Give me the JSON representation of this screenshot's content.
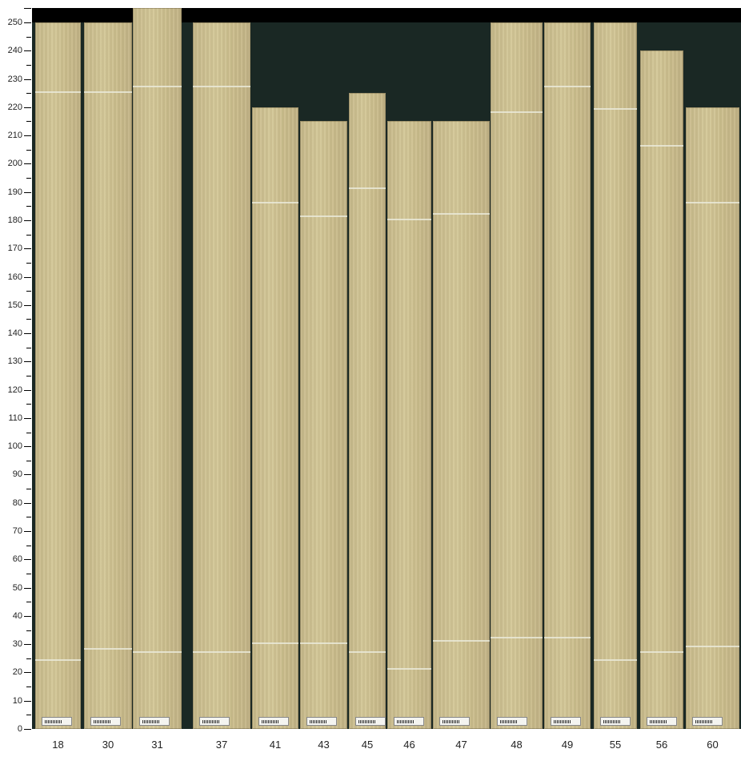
{
  "y_axis": {
    "min": 0,
    "max": 250,
    "major_step": 10,
    "minor_step": 5,
    "labels": [
      "0",
      "10",
      "20",
      "30",
      "40",
      "50",
      "60",
      "70",
      "80",
      "90",
      "100",
      "110",
      "120",
      "130",
      "140",
      "150",
      "160",
      "170",
      "180",
      "190",
      "200",
      "210",
      "220",
      "230",
      "240",
      "250"
    ]
  },
  "boards": [
    {
      "id": "18",
      "length": 250,
      "marks": [
        225,
        24
      ]
    },
    {
      "id": "30",
      "length": 250,
      "marks": [
        225,
        28
      ]
    },
    {
      "id": "31",
      "length": 255,
      "marks": [
        227,
        27
      ]
    },
    {
      "id": "37",
      "length": 250,
      "marks": [
        227,
        27
      ]
    },
    {
      "id": "41",
      "length": 220,
      "marks": [
        186,
        30
      ]
    },
    {
      "id": "43",
      "length": 215,
      "marks": [
        181,
        30
      ]
    },
    {
      "id": "45",
      "length": 225,
      "marks": [
        191,
        27
      ]
    },
    {
      "id": "46",
      "length": 215,
      "marks": [
        180,
        21
      ]
    },
    {
      "id": "47",
      "length": 215,
      "marks": [
        182,
        31
      ]
    },
    {
      "id": "48",
      "length": 250,
      "marks": [
        218,
        32
      ]
    },
    {
      "id": "49",
      "length": 250,
      "marks": [
        227,
        32
      ]
    },
    {
      "id": "55",
      "length": 250,
      "marks": [
        219,
        24
      ]
    },
    {
      "id": "56",
      "length": 240,
      "marks": [
        206,
        27
      ]
    },
    {
      "id": "60",
      "length": 220,
      "marks": [
        186,
        29
      ]
    }
  ],
  "colors": {
    "background_top": "#000000",
    "gap": "#1a2824",
    "wood": "#cfc291"
  }
}
